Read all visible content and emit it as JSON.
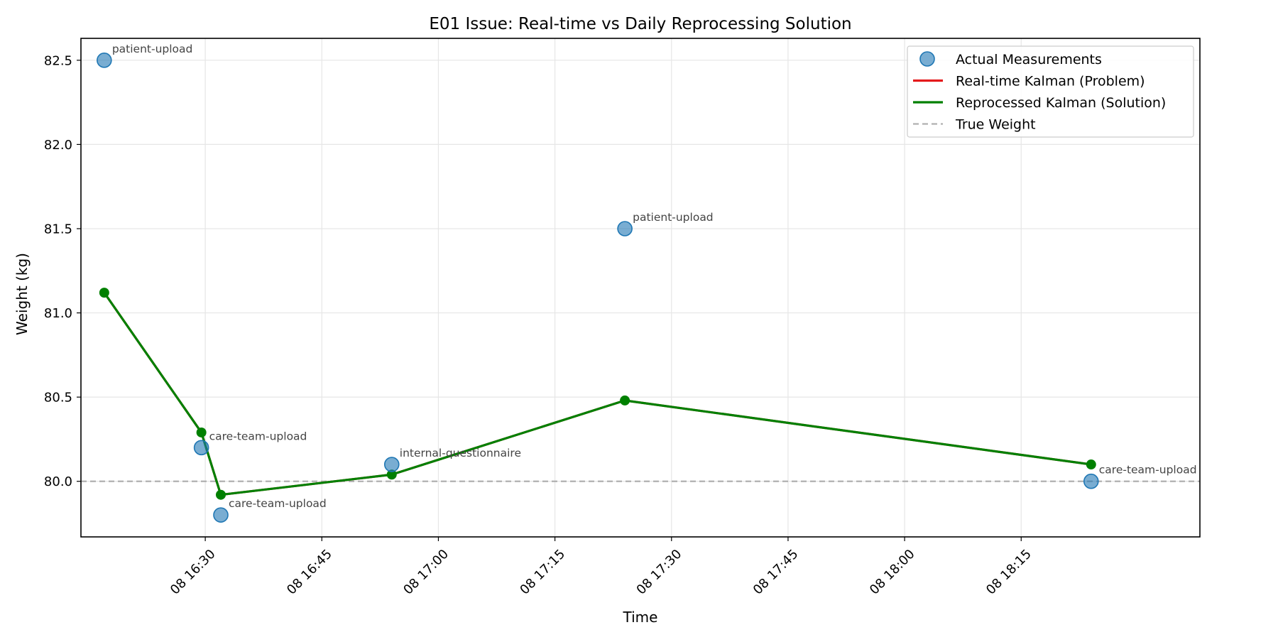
{
  "chart_data": {
    "type": "line",
    "title": "E01 Issue: Real-time vs Daily Reprocessing Solution",
    "xlabel": "Time",
    "ylabel": "Weight (kg)",
    "x_axis_kind": "datetime",
    "xlim": [
      "2024-01-08 16:14:00",
      "2024-01-08 18:38:00"
    ],
    "ylim": [
      79.67,
      82.63
    ],
    "y_ticks": [
      80.0,
      80.5,
      81.0,
      81.5,
      82.0,
      82.5
    ],
    "y_tick_labels": [
      "80.0",
      "80.5",
      "81.0",
      "81.5",
      "82.0",
      "82.5"
    ],
    "x_ticks": [
      "2024-01-08 16:30:00",
      "2024-01-08 16:45:00",
      "2024-01-08 17:00:00",
      "2024-01-08 17:15:00",
      "2024-01-08 17:30:00",
      "2024-01-08 17:45:00",
      "2024-01-08 18:00:00",
      "2024-01-08 18:15:00"
    ],
    "x_tick_labels": [
      "08 16:30",
      "08 16:45",
      "08 17:00",
      "08 17:15",
      "08 17:30",
      "08 17:45",
      "08 18:00",
      "08 18:15"
    ],
    "grid": true,
    "legend_position": "top-right",
    "series": [
      {
        "name": "Actual Measurements",
        "kind": "scatter",
        "color": "#1f77b4",
        "points": [
          {
            "x": "2024-01-08 16:17:00",
            "y": 82.5,
            "label": "patient-upload"
          },
          {
            "x": "2024-01-08 16:29:30",
            "y": 80.2,
            "label": "care-team-upload"
          },
          {
            "x": "2024-01-08 16:32:00",
            "y": 79.8,
            "label": "care-team-upload"
          },
          {
            "x": "2024-01-08 16:54:00",
            "y": 80.1,
            "label": "internal-questionnaire"
          },
          {
            "x": "2024-01-08 17:24:00",
            "y": 81.5,
            "label": "patient-upload"
          },
          {
            "x": "2024-01-08 18:24:00",
            "y": 80.0,
            "label": "care-team-upload"
          }
        ]
      },
      {
        "name": "Real-time Kalman (Problem)",
        "kind": "line",
        "color": "#e41a1c",
        "points": [
          {
            "x": "2024-01-08 16:17:00",
            "y": 81.12
          },
          {
            "x": "2024-01-08 16:29:30",
            "y": 80.29
          },
          {
            "x": "2024-01-08 16:32:00",
            "y": 79.92
          },
          {
            "x": "2024-01-08 16:54:00",
            "y": 80.04
          },
          {
            "x": "2024-01-08 17:24:00",
            "y": 80.48
          },
          {
            "x": "2024-01-08 18:24:00",
            "y": 80.1
          }
        ]
      },
      {
        "name": "Reprocessed Kalman (Solution)",
        "kind": "line",
        "color": "#008000",
        "markers": true,
        "points": [
          {
            "x": "2024-01-08 16:17:00",
            "y": 81.12
          },
          {
            "x": "2024-01-08 16:29:30",
            "y": 80.29
          },
          {
            "x": "2024-01-08 16:32:00",
            "y": 79.92
          },
          {
            "x": "2024-01-08 16:54:00",
            "y": 80.04
          },
          {
            "x": "2024-01-08 17:24:00",
            "y": 80.48
          },
          {
            "x": "2024-01-08 18:24:00",
            "y": 80.1
          }
        ]
      },
      {
        "name": "True Weight",
        "kind": "hline",
        "color": "#b0b0b0",
        "style": "dashed",
        "y": 80.0
      }
    ]
  }
}
